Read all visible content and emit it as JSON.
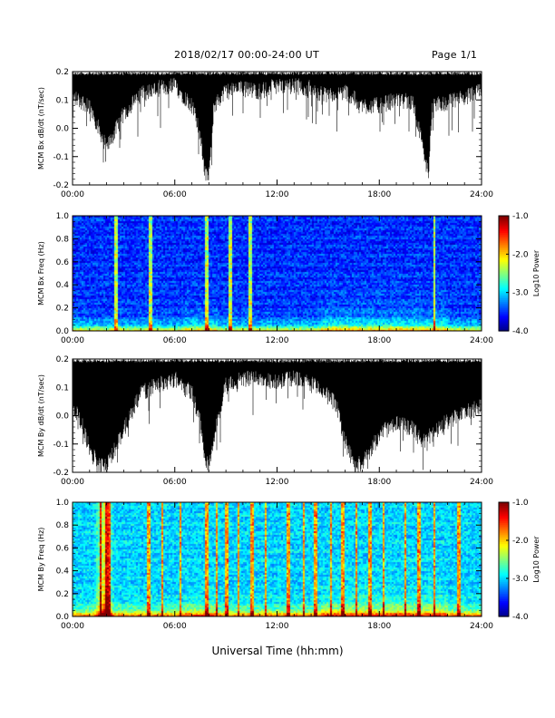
{
  "header": {
    "date_range": "2018/02/17  00:00-24:00 UT",
    "page": "Page 1/1"
  },
  "xlabel": "Universal Time (hh:mm)",
  "colorbar": {
    "label": "Log10 Power",
    "ticks": [
      "-1.0",
      "-2.0",
      "-3.0",
      "-4.0"
    ]
  },
  "chart_data": [
    {
      "type": "line",
      "id": "bx_dbdt",
      "ylabel": "MCM Bx dB/dt (nT/sec)",
      "ylim": [
        -0.2,
        0.2
      ],
      "yticks": [
        "0.2",
        "0.1",
        "0.0",
        "-0.1",
        "-0.2"
      ],
      "xlim": [
        0,
        24
      ],
      "xticks": [
        "00:00",
        "06:00",
        "12:00",
        "18:00",
        "24:00"
      ],
      "envelope": {
        "hours": [
          0,
          1,
          2,
          3,
          4,
          5,
          6,
          7,
          7.5,
          7.8,
          8.0,
          8.3,
          9,
          10,
          11,
          12,
          13,
          14,
          15,
          16,
          17,
          18,
          19,
          20,
          20.9,
          21.1,
          22,
          23,
          24
        ],
        "upper": [
          0.2,
          0.2,
          0.2,
          0.2,
          0.2,
          0.2,
          0.2,
          0.2,
          0.2,
          0.2,
          0.2,
          0.2,
          0.2,
          0.2,
          0.2,
          0.2,
          0.2,
          0.2,
          0.2,
          0.2,
          0.2,
          0.2,
          0.2,
          0.2,
          0.2,
          0.2,
          0.2,
          0.2,
          0.2
        ],
        "lower": [
          0.08,
          0.05,
          -0.1,
          0.02,
          0.09,
          0.11,
          0.12,
          0.05,
          -0.05,
          -0.2,
          -0.2,
          0.05,
          0.1,
          0.11,
          0.1,
          0.12,
          0.12,
          0.11,
          0.08,
          0.1,
          0.05,
          0.05,
          0.07,
          0.06,
          -0.2,
          0.05,
          0.06,
          0.08,
          0.1
        ]
      }
    },
    {
      "type": "heatmap",
      "id": "bx_spec",
      "ylabel": "MCM Bx Freq (Hz)",
      "ylim": [
        0.0,
        1.0
      ],
      "yticks": [
        "1.0",
        "0.8",
        "0.6",
        "0.4",
        "0.2",
        "0.0"
      ],
      "xlim": [
        0,
        24
      ],
      "xticks": [
        "00:00",
        "06:00",
        "12:00",
        "18:00",
        "24:00"
      ],
      "zlim": [
        -4.0,
        -1.0
      ],
      "spikes_hours": [
        2.5,
        4.5,
        7.8,
        9.2,
        10.4,
        21.2
      ]
    },
    {
      "type": "line",
      "id": "by_dbdt",
      "ylabel": "MCM By dB/dt (nT/sec)",
      "ylim": [
        -0.2,
        0.2
      ],
      "yticks": [
        "0.2",
        "0.1",
        "0.0",
        "-0.1",
        "-0.2"
      ],
      "xlim": [
        0,
        24
      ],
      "xticks": [
        "00:00",
        "06:00",
        "12:00",
        "18:00",
        "24:00"
      ],
      "envelope": {
        "hours": [
          0,
          0.5,
          1,
          1.5,
          2,
          2.5,
          3,
          4,
          5,
          6,
          7,
          7.5,
          7.8,
          8.0,
          8.5,
          9,
          10,
          11,
          12,
          13,
          14,
          15,
          15.5,
          16,
          16.5,
          17,
          17.5,
          18,
          19,
          20,
          20.5,
          21,
          22,
          23,
          24
        ],
        "upper": [
          0.2,
          0.2,
          0.2,
          0.2,
          0.2,
          0.2,
          0.2,
          0.2,
          0.2,
          0.2,
          0.2,
          0.2,
          0.2,
          0.2,
          0.2,
          0.2,
          0.2,
          0.2,
          0.2,
          0.2,
          0.2,
          0.2,
          0.2,
          0.2,
          0.2,
          0.2,
          0.2,
          0.2,
          0.2,
          0.2,
          0.2,
          0.2,
          0.2,
          0.2,
          0.2
        ],
        "lower": [
          0.0,
          -0.05,
          -0.15,
          -0.2,
          -0.2,
          -0.15,
          -0.08,
          0.05,
          0.08,
          0.1,
          0.05,
          -0.05,
          -0.2,
          -0.2,
          -0.05,
          0.08,
          0.1,
          0.1,
          0.09,
          0.1,
          0.08,
          0.05,
          0.0,
          -0.12,
          -0.2,
          -0.2,
          -0.15,
          -0.1,
          -0.05,
          -0.08,
          -0.12,
          -0.1,
          -0.05,
          -0.02,
          0.0
        ]
      }
    },
    {
      "type": "heatmap",
      "id": "by_spec",
      "ylabel": "MCM By Freq (Hz)",
      "ylim": [
        0.0,
        1.0
      ],
      "yticks": [
        "1.0",
        "0.8",
        "0.6",
        "0.4",
        "0.2",
        "0.0"
      ],
      "xlim": [
        0,
        24
      ],
      "xticks": [
        "00:00",
        "06:00",
        "12:00",
        "18:00",
        "24:00"
      ],
      "zlim": [
        -4.0,
        -1.0
      ],
      "spikes_hours": [
        1.6,
        1.9,
        2.1,
        4.4,
        5.2,
        6.3,
        7.8,
        8.4,
        9.0,
        9.7,
        10.5,
        11.3,
        12.6,
        13.5,
        14.2,
        15.1,
        15.8,
        16.6,
        17.4,
        18.2,
        19.5,
        20.3,
        21.2,
        22.6
      ]
    }
  ]
}
